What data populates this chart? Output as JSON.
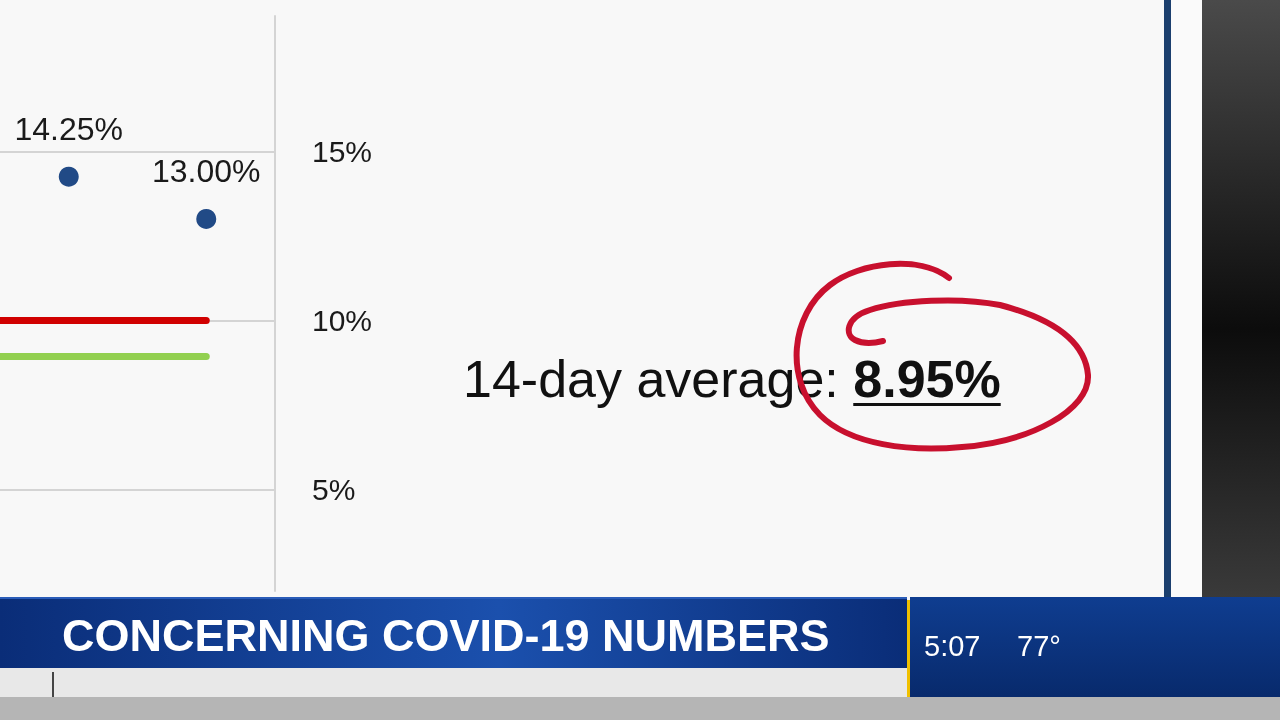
{
  "chart_data": {
    "type": "scatter",
    "title": "CONCERNING COVID-19 NUMBERS",
    "categories": [
      null,
      null
    ],
    "values": [
      14.25,
      13.0
    ],
    "value_labels": [
      "14.25%",
      "13.00%"
    ],
    "color": "#214a86",
    "marker": "circle",
    "ylim": [
      2,
      19
    ],
    "yticks": [
      {
        "value": 5,
        "label": "5%"
      },
      {
        "value": 10,
        "label": "10%"
      },
      {
        "value": 15,
        "label": "15%"
      }
    ],
    "grid": "y",
    "ref_lines": [
      {
        "axis": "y",
        "value": 10,
        "color": "#d10000"
      },
      {
        "axis": "y",
        "value": 8.95,
        "color": "#92d050"
      }
    ],
    "annotations": [
      "14-day average: 8.95%",
      "5:07",
      "77°"
    ]
  }
}
